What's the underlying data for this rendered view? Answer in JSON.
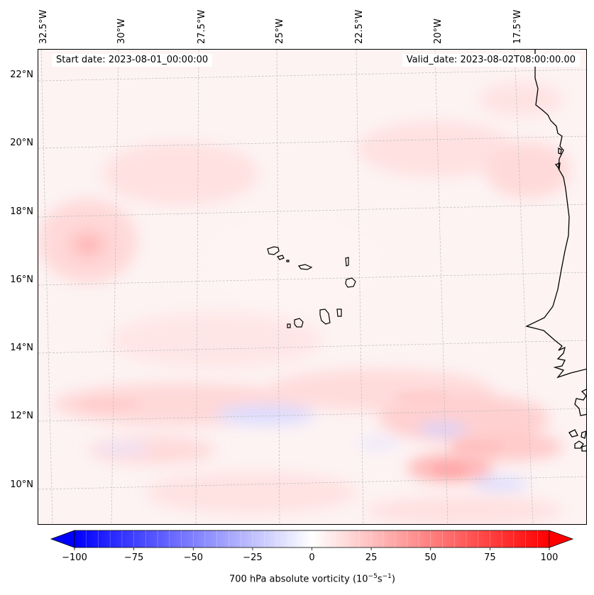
{
  "map": {
    "start_date": "Start date: 2023-08-01_00:00:00",
    "valid_date": "Valid_date: 2023-08-02T08:00:00.00",
    "lat_labels": [
      "22°N",
      "20°N",
      "18°N",
      "16°N",
      "14°N",
      "12°N",
      "10°N"
    ],
    "lon_labels": [
      "32.5°W",
      "30°W",
      "27.5°W",
      "25°W",
      "22.5°W",
      "20°W",
      "17.5°W"
    ],
    "islands": [
      "Santo Antão",
      "São Vicente",
      "São Nicolau",
      "Sal",
      "Boa Vista",
      "Maio",
      "Santiago",
      "Fogo",
      "Brava"
    ],
    "coastline": "West Africa"
  },
  "colorbar": {
    "title": "700 hPa absolute vorticity",
    "units_prefix": "(10",
    "units_exp1": "−5",
    "units_mid": "s",
    "units_exp2": "−1",
    "units_suffix": ")",
    "ticks": [
      "−100",
      "−75",
      "−50",
      "−25",
      "0",
      "25",
      "50",
      "75",
      "100"
    ],
    "min": -100,
    "max": 100,
    "low_color": "#0000ff",
    "mid_color": "#ffffff",
    "high_color": "#ff0000"
  }
}
